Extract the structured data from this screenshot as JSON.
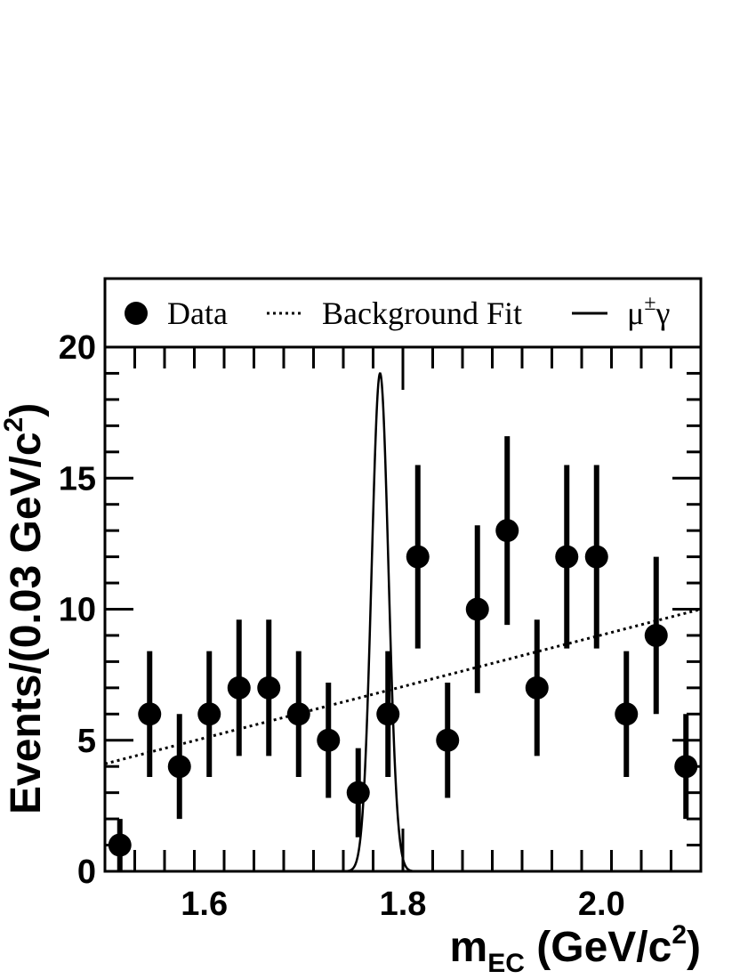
{
  "chart_data": {
    "type": "scatter",
    "xlabel": {
      "base": "m",
      "sub": "EC",
      "rest": " (GeV/c",
      "sup": "2",
      "close": ")"
    },
    "ylabel": {
      "main": "Events/(0.03 GeV/c",
      "sup": "2",
      "close": ")"
    },
    "xlim": [
      1.5,
      2.1
    ],
    "ylim": [
      0,
      20
    ],
    "x_ticks": [
      {
        "value": 1.6,
        "label": "1.6"
      },
      {
        "value": 1.8,
        "label": "1.8"
      },
      {
        "value": 2.0,
        "label": "2.0"
      }
    ],
    "y_ticks": [
      {
        "value": 0,
        "label": "0"
      },
      {
        "value": 5,
        "label": "5"
      },
      {
        "value": 10,
        "label": "10"
      },
      {
        "value": 15,
        "label": "15"
      },
      {
        "value": 20,
        "label": "20"
      }
    ],
    "legend": {
      "placement": "top",
      "entries": [
        {
          "label": "Data",
          "style": "marker"
        },
        {
          "label": "Background Fit",
          "style": "dotted"
        },
        {
          "label": "μ",
          "sup": "±",
          "tail": "γ",
          "style": "solid"
        }
      ]
    },
    "data_points": {
      "name": "Data",
      "x": [
        1.515,
        1.545,
        1.575,
        1.605,
        1.635,
        1.665,
        1.695,
        1.725,
        1.755,
        1.785,
        1.815,
        1.845,
        1.875,
        1.905,
        1.935,
        1.965,
        1.995,
        2.025,
        2.055,
        2.085
      ],
      "y": [
        1,
        6,
        4,
        6,
        7,
        7,
        6,
        5,
        3,
        6,
        12,
        5,
        10,
        13,
        7,
        12,
        12,
        6,
        9,
        4
      ],
      "err_low": [
        1.0,
        2.4,
        2.0,
        2.4,
        2.6,
        2.6,
        2.4,
        2.2,
        1.7,
        2.4,
        3.5,
        2.2,
        3.2,
        3.6,
        2.6,
        3.5,
        3.5,
        2.4,
        3.0,
        2.0
      ],
      "err_high": [
        1.0,
        2.4,
        2.0,
        2.4,
        2.6,
        2.6,
        2.4,
        2.2,
        1.7,
        2.4,
        3.5,
        2.2,
        3.2,
        3.6,
        2.6,
        3.5,
        3.5,
        2.4,
        3.0,
        2.0
      ]
    },
    "background_fit": {
      "name": "Background Fit",
      "x": [
        1.5,
        2.1
      ],
      "y": [
        4.1,
        10.0
      ]
    },
    "signal": {
      "name": "μ±γ",
      "mean": 1.777,
      "sigma": 0.0085,
      "peak": 19.0,
      "x_range": [
        1.74,
        1.82
      ]
    }
  }
}
